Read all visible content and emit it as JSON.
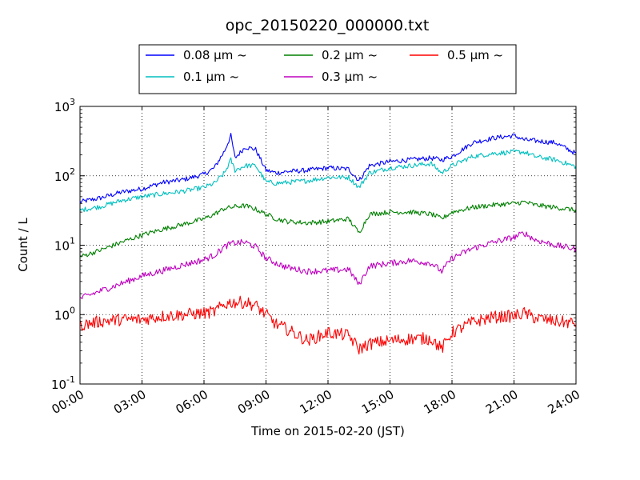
{
  "chart_data": {
    "type": "line",
    "title": "opc_20150220_000000.txt",
    "xlabel": "Time on 2015-02-20 (JST)",
    "ylabel": "Count / L",
    "x_unit": "hours",
    "xlim": [
      0,
      24
    ],
    "ylim": [
      0.1,
      1000
    ],
    "yscale": "log",
    "grid": true,
    "legend_position": "top-center",
    "x_tick_labels": [
      "00:00",
      "03:00",
      "06:00",
      "09:00",
      "12:00",
      "15:00",
      "18:00",
      "21:00",
      "24:00"
    ],
    "y_tick_labels": [
      {
        "base": "10",
        "exp": "-1",
        "value": 0.1
      },
      {
        "base": "10",
        "exp": "0",
        "value": 1
      },
      {
        "base": "10",
        "exp": "1",
        "value": 10
      },
      {
        "base": "10",
        "exp": "2",
        "value": 100
      },
      {
        "base": "10",
        "exp": "3",
        "value": 1000
      }
    ],
    "x": [
      0,
      1,
      2,
      3,
      4,
      5,
      6,
      6.5,
      7,
      7.3,
      7.5,
      8,
      8.5,
      9,
      9.5,
      10,
      11,
      12,
      13,
      13.5,
      14,
      15,
      16,
      17,
      17.5,
      18,
      19,
      20,
      21,
      21.5,
      22,
      23,
      24
    ],
    "series": [
      {
        "name": "0.08 μm ~",
        "color": "#0000ff",
        "values": [
          42,
          48,
          58,
          65,
          80,
          88,
          105,
          130,
          230,
          380,
          180,
          260,
          240,
          120,
          110,
          115,
          120,
          130,
          125,
          85,
          140,
          160,
          170,
          180,
          170,
          190,
          300,
          350,
          380,
          330,
          320,
          300,
          210
        ]
      },
      {
        "name": "0.1 μm ~",
        "color": "#00bfbf",
        "values": [
          32,
          36,
          44,
          50,
          55,
          60,
          68,
          78,
          110,
          170,
          120,
          140,
          140,
          82,
          78,
          80,
          85,
          95,
          95,
          68,
          110,
          130,
          140,
          150,
          110,
          140,
          190,
          210,
          220,
          220,
          190,
          170,
          135
        ]
      },
      {
        "name": "0.2 μm ~",
        "color": "#008000",
        "values": [
          6.8,
          8.5,
          11,
          14,
          17,
          20,
          24,
          28,
          34,
          35,
          36,
          37,
          33,
          28,
          24,
          22,
          21,
          22,
          24,
          15,
          28,
          30,
          30,
          28,
          24,
          30,
          35,
          38,
          40,
          42,
          38,
          35,
          32
        ]
      },
      {
        "name": "0.3 μm ~",
        "color": "#bf00bf",
        "values": [
          1.7,
          2.2,
          2.8,
          3.6,
          4.3,
          5.2,
          6.2,
          7.2,
          9.5,
          10.5,
          10.8,
          11,
          9.5,
          6.5,
          5.5,
          4.8,
          4.2,
          4.3,
          4.5,
          2.7,
          5,
          5.5,
          6,
          5.5,
          4.2,
          6.5,
          9,
          11,
          13,
          15,
          12,
          10,
          8.8
        ]
      },
      {
        "name": "0.5 μm ~",
        "color": "#ff0000",
        "values": [
          0.7,
          0.8,
          0.85,
          0.85,
          0.95,
          1.0,
          1.05,
          1.1,
          1.4,
          1.5,
          1.5,
          1.5,
          1.35,
          1.0,
          0.72,
          0.62,
          0.42,
          0.55,
          0.5,
          0.32,
          0.38,
          0.42,
          0.45,
          0.45,
          0.32,
          0.55,
          0.78,
          0.92,
          0.95,
          1.05,
          0.9,
          0.8,
          0.75
        ]
      }
    ]
  }
}
